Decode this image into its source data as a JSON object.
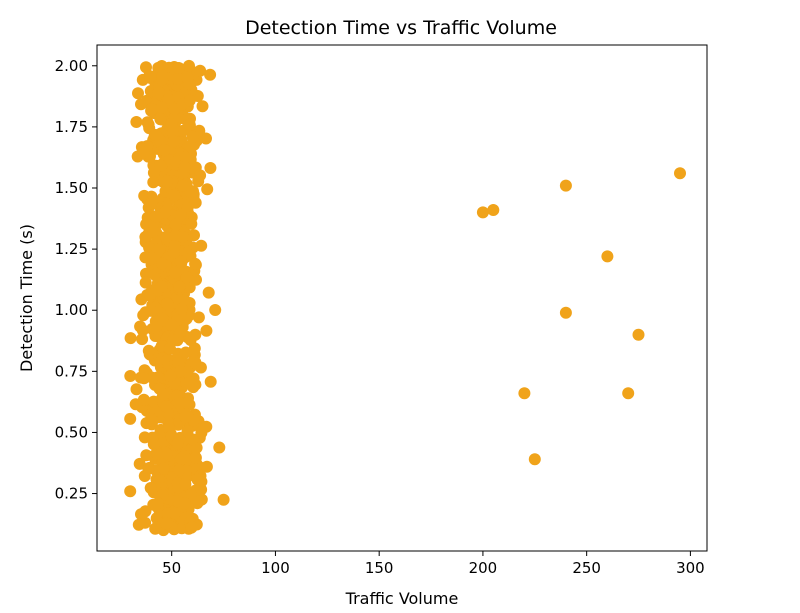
{
  "chart_data": {
    "type": "scatter",
    "title": "Detection Time vs Traffic Volume",
    "xlabel": "Traffic Volume",
    "ylabel": "Detection Time (s)",
    "xlim": [
      14,
      308
    ],
    "ylim": [
      0.015,
      2.085
    ],
    "xticks": [
      50,
      100,
      150,
      200,
      250,
      300
    ],
    "yticks": [
      0.25,
      0.5,
      0.75,
      1.0,
      1.25,
      1.5,
      1.75,
      2.0
    ],
    "xtick_labels": [
      "50",
      "100",
      "150",
      "200",
      "250",
      "300"
    ],
    "ytick_labels": [
      "0.25",
      "0.50",
      "0.75",
      "1.00",
      "1.25",
      "1.50",
      "1.75",
      "2.00"
    ],
    "grid": false,
    "marker_color": "#f0a31a",
    "cluster": {
      "description_of_bulk": "dense cloud of points",
      "x_mean": 50,
      "x_std": 7,
      "x_range": [
        30,
        75
      ],
      "y_range": [
        0.1,
        2.0
      ],
      "count": 1000
    },
    "outliers": {
      "x": [
        200,
        205,
        220,
        225,
        240,
        240,
        260,
        270,
        275,
        295
      ],
      "y": [
        1.4,
        1.41,
        0.66,
        0.39,
        1.51,
        0.99,
        1.22,
        0.66,
        0.9,
        1.56
      ]
    }
  }
}
